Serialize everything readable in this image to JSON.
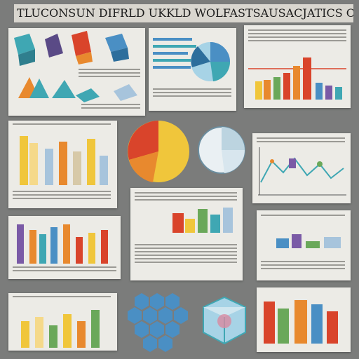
{
  "poster": {
    "title": "TLUCONSUN DIFRLD UKKLD WOLFASTSAUSACJATICS OF ALL COLESTION",
    "colors": {
      "background": "#7b7c7b",
      "panel": "#ecebe6",
      "red": "#d9442b",
      "orange": "#e8892e",
      "yellow": "#f0c63b",
      "teal": "#3fa7b3",
      "blue": "#4a8fc4",
      "green": "#6aa85a",
      "purple": "#7a5aa6"
    },
    "icons": [
      "3d-cube-icon",
      "pie-chart-icon",
      "bar-chart-icon",
      "line-chart-icon",
      "hexagon-cluster-icon",
      "glass-cube-icon"
    ]
  }
}
